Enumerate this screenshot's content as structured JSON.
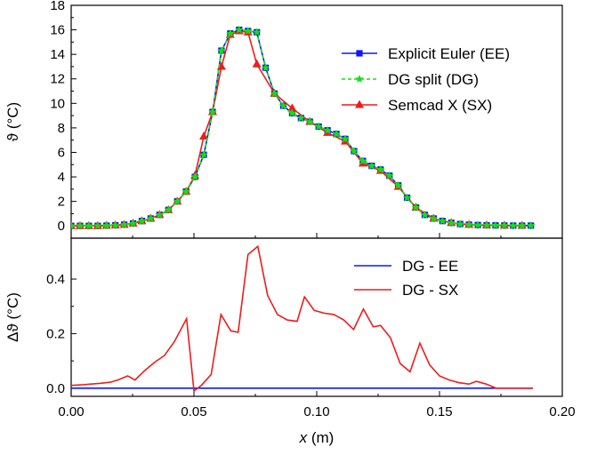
{
  "chart_data": [
    {
      "type": "line",
      "title": "",
      "xlabel": "",
      "ylabel": "ϑ (°C)",
      "xlim": [
        0.0,
        0.2
      ],
      "ylim": [
        -1,
        18
      ],
      "yticks": [
        0,
        2,
        4,
        6,
        8,
        10,
        12,
        14,
        16,
        18
      ],
      "grid": false,
      "legend": "top-right",
      "x": [
        0.0,
        0.0036,
        0.0072,
        0.0108,
        0.0144,
        0.018,
        0.0216,
        0.0252,
        0.0288,
        0.0324,
        0.036,
        0.0396,
        0.0432,
        0.0468,
        0.0504,
        0.054,
        0.0576,
        0.0612,
        0.0648,
        0.0684,
        0.072,
        0.0756,
        0.0792,
        0.0828,
        0.0864,
        0.09,
        0.0936,
        0.0972,
        0.1008,
        0.1044,
        0.108,
        0.1116,
        0.1152,
        0.1188,
        0.1224,
        0.126,
        0.1296,
        0.1332,
        0.1368,
        0.1404,
        0.144,
        0.1476,
        0.1512,
        0.1548,
        0.1584,
        0.162,
        0.1656,
        0.1692,
        0.1728,
        0.1764,
        0.18,
        0.1836,
        0.1872
      ],
      "series": [
        {
          "name": "Explicit Euler (EE)",
          "color": "#0a17ff",
          "marker": "square",
          "dash": "solid",
          "values": [
            0.0,
            0.0,
            0.0,
            0.0,
            0.02,
            0.05,
            0.1,
            0.2,
            0.4,
            0.6,
            0.9,
            1.3,
            2.0,
            2.8,
            4.0,
            5.8,
            9.3,
            14.3,
            15.7,
            16.0,
            15.9,
            15.8,
            12.9,
            10.8,
            9.8,
            9.2,
            8.8,
            8.5,
            8.1,
            7.8,
            7.5,
            7.1,
            6.1,
            5.3,
            4.9,
            4.6,
            4.1,
            3.3,
            2.3,
            1.5,
            0.9,
            0.6,
            0.4,
            0.25,
            0.15,
            0.1,
            0.07,
            0.05,
            0.04,
            0.03,
            0.02,
            0.02,
            0.02
          ]
        },
        {
          "name": "DG split (DG)",
          "color": "#12e012",
          "marker": "star",
          "dash": "dashed",
          "values": [
            0.0,
            0.0,
            0.0,
            0.0,
            0.02,
            0.05,
            0.1,
            0.2,
            0.4,
            0.6,
            0.9,
            1.3,
            2.0,
            2.8,
            4.0,
            5.8,
            9.3,
            14.3,
            15.7,
            16.0,
            15.9,
            15.8,
            12.9,
            10.8,
            9.8,
            9.2,
            8.8,
            8.5,
            8.1,
            7.8,
            7.5,
            7.1,
            6.1,
            5.3,
            4.9,
            4.6,
            4.1,
            3.3,
            2.3,
            1.5,
            0.9,
            0.6,
            0.4,
            0.25,
            0.15,
            0.1,
            0.07,
            0.05,
            0.04,
            0.03,
            0.02,
            0.02,
            0.02
          ]
        },
        {
          "name": "Semcad X (SX)",
          "color": "#ee1c1c",
          "marker": "triangle",
          "dash": "solid",
          "x": [
            0.0,
            0.0036,
            0.0072,
            0.0108,
            0.0144,
            0.018,
            0.0216,
            0.0252,
            0.0288,
            0.0324,
            0.036,
            0.0396,
            0.0432,
            0.0468,
            0.0504,
            0.054,
            0.0576,
            0.0612,
            0.0648,
            0.0684,
            0.072,
            0.0756,
            0.0828,
            0.09,
            0.0972,
            0.1044,
            0.1116,
            0.1188,
            0.126,
            0.1332,
            0.1404,
            0.1476,
            0.1548,
            0.162,
            0.1692,
            0.1764,
            0.1836
          ],
          "values": [
            0.0,
            0.0,
            0.0,
            0.0,
            0.02,
            0.05,
            0.1,
            0.2,
            0.4,
            0.6,
            0.9,
            1.3,
            2.0,
            2.8,
            4.1,
            7.3,
            9.3,
            13.0,
            15.6,
            15.9,
            15.8,
            13.2,
            10.8,
            9.6,
            8.5,
            7.6,
            6.9,
            5.1,
            4.5,
            3.2,
            1.5,
            0.6,
            0.25,
            0.1,
            0.05,
            0.03,
            0.02
          ]
        }
      ]
    },
    {
      "type": "line",
      "title": "",
      "xlabel": "x (m)",
      "ylabel": "Δϑ (°C)",
      "xlim": [
        0.0,
        0.2
      ],
      "xticks": [
        "0.00",
        "0.05",
        "0.10",
        "0.15",
        "0.20"
      ],
      "ylim": [
        -0.03,
        0.55
      ],
      "yticks": [
        "0.0",
        "0.2",
        "0.4"
      ],
      "grid": false,
      "legend": "top-right",
      "series": [
        {
          "name": "DG - EE",
          "color": "#0a17ff",
          "x": [
            0.0,
            0.188
          ],
          "values": [
            0.0,
            0.0
          ]
        },
        {
          "name": "DG - SX",
          "color": "#ee1c1c",
          "x": [
            0.0,
            0.004,
            0.008,
            0.012,
            0.016,
            0.019,
            0.023,
            0.026,
            0.03,
            0.034,
            0.038,
            0.042,
            0.047,
            0.05,
            0.053,
            0.057,
            0.061,
            0.065,
            0.068,
            0.072,
            0.076,
            0.08,
            0.084,
            0.088,
            0.092,
            0.095,
            0.099,
            0.103,
            0.107,
            0.111,
            0.115,
            0.119,
            0.123,
            0.126,
            0.13,
            0.134,
            0.138,
            0.142,
            0.146,
            0.15,
            0.154,
            0.158,
            0.162,
            0.165,
            0.169,
            0.173,
            0.18,
            0.188
          ],
          "values": [
            0.01,
            0.012,
            0.015,
            0.018,
            0.022,
            0.03,
            0.045,
            0.03,
            0.065,
            0.095,
            0.12,
            0.17,
            0.255,
            -0.01,
            0.01,
            0.05,
            0.27,
            0.21,
            0.205,
            0.49,
            0.52,
            0.34,
            0.27,
            0.25,
            0.245,
            0.335,
            0.285,
            0.275,
            0.27,
            0.25,
            0.215,
            0.29,
            0.225,
            0.23,
            0.185,
            0.09,
            0.06,
            0.165,
            0.085,
            0.045,
            0.03,
            0.02,
            0.015,
            0.025,
            0.015,
            0.0,
            0.0,
            0.0
          ]
        }
      ]
    }
  ]
}
